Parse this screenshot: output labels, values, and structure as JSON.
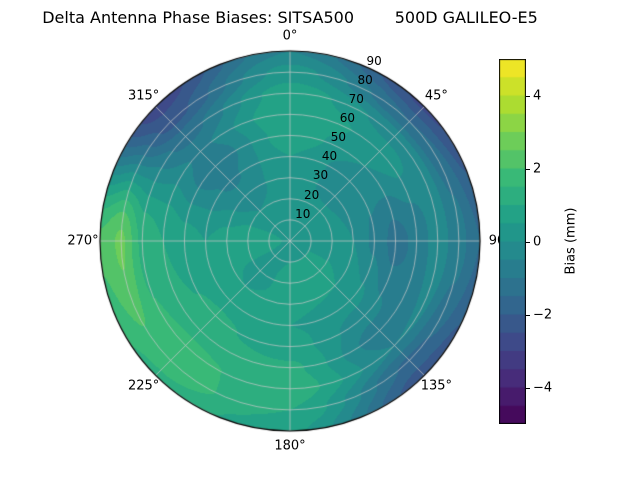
{
  "chart_data": {
    "type": "heatmap",
    "subtype": "filled-contour",
    "projection": "polar",
    "title": "Delta Antenna Phase Biases: SITSA500        500D GALILEO-E5",
    "grid": "on",
    "grid_color": "#c8c8c8",
    "outline_color": "#000000",
    "colormap": "viridis",
    "colormap_stops": [
      "#440154",
      "#482878",
      "#3e4989",
      "#31688e",
      "#26828e",
      "#1f9e89",
      "#35b779",
      "#6ece58",
      "#b5de2b",
      "#fde725"
    ],
    "value_range": [
      -5,
      5
    ],
    "band_step": 0.5,
    "colorbar": {
      "label": "Bias (mm)",
      "tick_labels": [
        "−4",
        "−2",
        "0",
        "2",
        "4"
      ],
      "tick_values": [
        -4,
        -2,
        0,
        2,
        4
      ]
    },
    "azimuth_labels": [
      {
        "angle_deg": 0,
        "label": "0°"
      },
      {
        "angle_deg": 45,
        "label": "45°"
      },
      {
        "angle_deg": 90,
        "label": "90"
      },
      {
        "angle_deg": 135,
        "label": "135°"
      },
      {
        "angle_deg": 180,
        "label": "180°"
      },
      {
        "angle_deg": 225,
        "label": "225°"
      },
      {
        "angle_deg": 270,
        "label": "270°"
      },
      {
        "angle_deg": 315,
        "label": "315°"
      }
    ],
    "radial_tick_values": [
      10,
      20,
      30,
      40,
      50,
      60,
      70,
      80,
      90
    ],
    "radial_label_angle_deg": 25,
    "azimuths_deg": [
      0,
      45,
      90,
      135,
      180,
      225,
      270,
      315
    ],
    "radii": [
      0,
      10,
      20,
      30,
      40,
      50,
      60,
      70,
      80,
      90
    ],
    "bias_mm": [
      [
        0.4,
        0.3,
        0.2,
        0.3,
        0.5,
        0.8,
        1.0,
        0.8,
        0.2,
        -0.5
      ],
      [
        0.4,
        0.3,
        0.1,
        -0.2,
        -0.3,
        0.0,
        0.3,
        -0.2,
        -1.5,
        -2.6
      ],
      [
        0.4,
        0.5,
        0.3,
        0.0,
        -0.6,
        -1.2,
        -0.9,
        -0.2,
        -0.8,
        -1.5
      ],
      [
        0.4,
        0.5,
        0.6,
        0.5,
        0.2,
        -0.3,
        -0.8,
        -0.5,
        -1.6,
        -2.3
      ],
      [
        0.4,
        0.5,
        0.7,
        0.6,
        0.5,
        0.7,
        1.1,
        1.3,
        1.0,
        0.6
      ],
      [
        0.4,
        0.4,
        0.3,
        0.5,
        0.8,
        1.1,
        1.4,
        1.6,
        1.8,
        1.4
      ],
      [
        0.4,
        0.7,
        0.9,
        0.7,
        0.5,
        0.7,
        1.0,
        1.4,
        2.6,
        2.1
      ],
      [
        0.4,
        0.3,
        0.0,
        -0.3,
        -0.6,
        -0.9,
        -0.6,
        -1.2,
        -2.2,
        -2.8
      ]
    ]
  }
}
